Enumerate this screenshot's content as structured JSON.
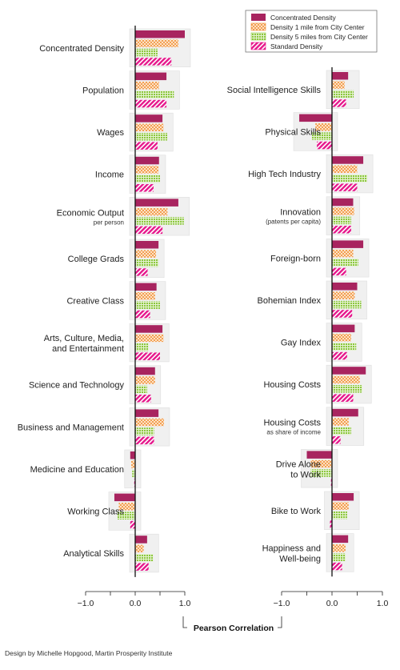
{
  "chart_data": {
    "type": "bar",
    "orientation": "horizontal",
    "xlabel": "Pearson Correlation",
    "xlim": [
      -1.0,
      1.0
    ],
    "xticks": [
      "−1.0",
      "0.0",
      "1.0"
    ],
    "colors": {
      "concentrated": "#a8245f",
      "density1": "#ef8b2f",
      "density5": "#8cc63e",
      "standard": "#e6168b",
      "bg": "#f0f0f0"
    },
    "legend": {
      "placement": "top-right",
      "entries": [
        {
          "name": "Concentrated Density",
          "pattern": "solid"
        },
        {
          "name": "Density 1 mile from City Center",
          "pattern": "dots"
        },
        {
          "name": "Density 5 miles from City Center",
          "pattern": "grid"
        },
        {
          "name": "Standard Density",
          "pattern": "stripes"
        }
      ]
    },
    "series": [
      "Concentrated Density",
      "Density 1 mile from City Center",
      "Density 5 miles from City Center",
      "Standard Density"
    ],
    "panels": [
      {
        "categories": [
          {
            "label": "Concentrated Density",
            "sublabel": "",
            "values": [
              1.0,
              0.87,
              0.45,
              0.73
            ]
          },
          {
            "label": "Population",
            "sublabel": "",
            "values": [
              0.63,
              0.48,
              0.78,
              0.63
            ]
          },
          {
            "label": "Wages",
            "sublabel": "",
            "values": [
              0.55,
              0.57,
              0.65,
              0.45
            ]
          },
          {
            "label": "Income",
            "sublabel": "",
            "values": [
              0.48,
              0.47,
              0.5,
              0.37
            ]
          },
          {
            "label": "Economic Output",
            "sublabel": "per person",
            "values": [
              0.87,
              0.65,
              0.98,
              0.55
            ]
          },
          {
            "label": "College Grads",
            "sublabel": "",
            "values": [
              0.47,
              0.42,
              0.47,
              0.25
            ]
          },
          {
            "label": "Creative Class",
            "sublabel": "",
            "values": [
              0.43,
              0.4,
              0.5,
              0.3
            ]
          },
          {
            "label": "Arts, Culture, Media,",
            "sublabel": "and Entertainment",
            "values": [
              0.55,
              0.57,
              0.27,
              0.5
            ]
          },
          {
            "label": "Science and Technology",
            "sublabel": "",
            "values": [
              0.4,
              0.4,
              0.24,
              0.32
            ]
          },
          {
            "label": "Business and Management",
            "sublabel": "",
            "values": [
              0.47,
              0.58,
              0.38,
              0.38
            ]
          },
          {
            "label": "Medicine and Education",
            "sublabel": "",
            "values": [
              -0.1,
              -0.08,
              -0.06,
              -0.02
            ]
          },
          {
            "label": "Working Class",
            "sublabel": "",
            "values": [
              -0.42,
              -0.33,
              -0.36,
              -0.1
            ]
          },
          {
            "label": "Analytical Skills",
            "sublabel": "",
            "values": [
              0.24,
              0.17,
              0.36,
              0.27
            ]
          }
        ]
      },
      {
        "categories": [
          {
            "label": "Social Intelligence Skills",
            "sublabel": "",
            "values": [
              0.32,
              0.25,
              0.43,
              0.28
            ]
          },
          {
            "label": "Physical Skills",
            "sublabel": "",
            "values": [
              -0.65,
              -0.33,
              -0.4,
              -0.3
            ]
          },
          {
            "label": "High Tech Industry",
            "sublabel": "",
            "values": [
              0.62,
              0.5,
              0.7,
              0.5
            ]
          },
          {
            "label": "Innovation",
            "sublabel": "(patents per capita)",
            "values": [
              0.42,
              0.44,
              0.38,
              0.38
            ]
          },
          {
            "label": "Foreign-born",
            "sublabel": "",
            "values": [
              0.62,
              0.42,
              0.52,
              0.28
            ]
          },
          {
            "label": "Bohemian Index",
            "sublabel": "",
            "values": [
              0.5,
              0.45,
              0.58,
              0.4
            ]
          },
          {
            "label": "Gay Index",
            "sublabel": "",
            "values": [
              0.45,
              0.38,
              0.48,
              0.3
            ]
          },
          {
            "label": "Housing Costs",
            "sublabel": "",
            "values": [
              0.67,
              0.55,
              0.6,
              0.42
            ]
          },
          {
            "label": "Housing Costs",
            "sublabel": "as share of income",
            "values": [
              0.52,
              0.33,
              0.38,
              0.17
            ]
          },
          {
            "label": "Drive Alone",
            "sublabel": "to Work",
            "values": [
              -0.5,
              -0.42,
              -0.42,
              -0.02
            ]
          },
          {
            "label": "Bike to Work",
            "sublabel": "",
            "values": [
              0.43,
              0.33,
              0.3,
              -0.04
            ]
          },
          {
            "label": "Happiness and",
            "sublabel": "Well-being",
            "values": [
              0.32,
              0.27,
              0.27,
              0.2
            ]
          }
        ]
      }
    ]
  },
  "credit": "Design by Michelle Hopgood, Martin Prosperity Institute"
}
